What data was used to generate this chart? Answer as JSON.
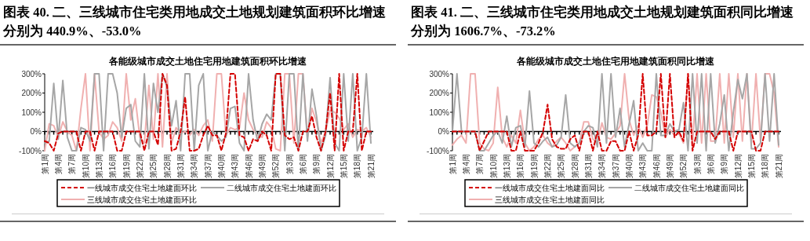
{
  "chart_data": [
    {
      "type": "line",
      "title": "图表 40. 二、三线城市住宅类用地成交土地规划建筑面积环比增速分别为 440.9%、-53.0%",
      "subtitle": "各能级城市成交土地住宅用地建筑面积环比增速",
      "categories": [
        "第1周",
        null,
        null,
        "第4周",
        null,
        null,
        "第7周",
        null,
        null,
        "第10周",
        null,
        null,
        "第13周",
        null,
        null,
        "第16周",
        null,
        null,
        "第19周",
        null,
        null,
        "第22周",
        null,
        null,
        "第25周",
        null,
        null,
        "第28周",
        null,
        null,
        "第31周",
        null,
        null,
        "第34周",
        null,
        null,
        "第37周",
        null,
        null,
        "第40周",
        null,
        null,
        "第43周",
        null,
        null,
        "第46周",
        null,
        null,
        "第49周",
        null,
        null,
        "第52周",
        null,
        null,
        "第3周",
        null,
        null,
        "第6周",
        null,
        null,
        "第9周",
        null,
        null,
        "第12周",
        null,
        null,
        "第15周",
        null,
        null,
        "第18周",
        null,
        null,
        "第21周"
      ],
      "ylim": [
        -100,
        300
      ],
      "yticks": [
        {
          "value": -100,
          "label": "-100%"
        },
        {
          "value": 0,
          "label": "0%"
        },
        {
          "value": 100,
          "label": "100%"
        },
        {
          "value": 200,
          "label": "200%"
        },
        {
          "value": 300,
          "label": "300%"
        }
      ],
      "legend": "bottom",
      "marker": "none",
      "series": [
        {
          "name": "一线城市成交住宅土地建面环比",
          "color": "#d40000",
          "line_style": "dashed",
          "values": [
            -50,
            -60,
            -100,
            -10,
            0,
            0,
            0,
            0,
            -100,
            0,
            0,
            -100,
            0,
            0,
            0,
            0,
            -100,
            -100,
            0,
            0,
            0,
            0,
            -100,
            0,
            0,
            -70,
            300,
            240,
            -100,
            -90,
            0,
            180,
            -100,
            -100,
            -90,
            -20,
            30,
            -20,
            -20,
            -100,
            -10,
            300,
            300,
            -20,
            -30,
            -100,
            -40,
            -50,
            0,
            -20,
            -100,
            300,
            300,
            -20,
            -40,
            -30,
            -100,
            0,
            0,
            80,
            -30,
            -100,
            0,
            200,
            -100,
            300,
            -100,
            0,
            0,
            300,
            -100,
            0,
            0
          ]
        },
        {
          "name": "二线城市成交住宅土地建面环比",
          "color": "#a6a6a6",
          "line_style": "solid",
          "values": [
            -60,
            -50,
            250,
            -40,
            265,
            -30,
            -100,
            -100,
            20,
            10,
            -50,
            300,
            300,
            -100,
            300,
            300,
            200,
            -30,
            120,
            140,
            -50,
            -80,
            300,
            -90,
            250,
            100,
            300,
            230,
            30,
            160,
            -100,
            300,
            300,
            -100,
            240,
            300,
            -100,
            0,
            -20,
            -50,
            -30,
            120,
            130,
            -60,
            -100,
            300,
            60,
            -50,
            40,
            90,
            60,
            300,
            300,
            -100,
            300,
            300,
            -100,
            300,
            -50,
            220,
            80,
            -100,
            -20,
            280,
            -60,
            -100,
            300,
            -50,
            300,
            -100,
            -30,
            300,
            -60
          ]
        },
        {
          "name": "三线城市成交住宅土地建面环比",
          "color": "#f0b0b0",
          "line_style": "solid",
          "values": [
            -100,
            40,
            30,
            -30,
            50,
            0,
            -20,
            -100,
            120,
            300,
            -100,
            300,
            0,
            -40,
            -20,
            50,
            20,
            -50,
            300,
            60,
            170,
            -30,
            -60,
            240,
            -40,
            300,
            -80,
            300,
            -60,
            20,
            -10,
            0,
            -20,
            10,
            -20,
            30,
            60,
            -50,
            300,
            300,
            -20,
            20,
            10,
            20,
            200,
            60,
            10,
            -20,
            -30,
            50,
            20,
            -90,
            -100,
            300,
            300,
            -60,
            300,
            300,
            -30,
            120,
            50,
            -60,
            0,
            110,
            100,
            70,
            10,
            40,
            -30,
            10,
            0,
            20,
            -30
          ]
        }
      ]
    },
    {
      "type": "line",
      "title": "图表 41. 二、三线城市住宅类用地成交土地规划建筑面积同比增速分别为 1606.7%、-73.2%",
      "subtitle": "各能级城市成交土地住宅用地建筑面积同比增速",
      "categories": [
        "第1周",
        null,
        null,
        "第4周",
        null,
        null,
        "第7周",
        null,
        null,
        "第10周",
        null,
        null,
        "第13周",
        null,
        null,
        "第16周",
        null,
        null,
        "第19周",
        null,
        null,
        "第22周",
        null,
        null,
        "第25周",
        null,
        null,
        "第28周",
        null,
        null,
        "第31周",
        null,
        null,
        "第34周",
        null,
        null,
        "第37周",
        null,
        null,
        "第40周",
        null,
        null,
        "第43周",
        null,
        null,
        "第46周",
        null,
        null,
        "第49周",
        null,
        null,
        "第52周",
        null,
        null,
        "第3周",
        null,
        null,
        "第6周",
        null,
        null,
        "第9周",
        null,
        null,
        "第12周",
        null,
        null,
        "第15周",
        null,
        null,
        "第18周",
        null,
        null,
        "第21周"
      ],
      "ylim": [
        -100,
        300
      ],
      "yticks": [
        {
          "value": -100,
          "label": "-100%"
        },
        {
          "value": 0,
          "label": "0%"
        },
        {
          "value": 100,
          "label": "100%"
        },
        {
          "value": 200,
          "label": "200%"
        },
        {
          "value": 300,
          "label": "300%"
        }
      ],
      "legend": "bottom",
      "marker": "none",
      "series": [
        {
          "name": "一线城市成交住宅土地建面同比",
          "color": "#d40000",
          "line_style": "dashed",
          "values": [
            0,
            0,
            0,
            0,
            0,
            0,
            -100,
            -50,
            0,
            0,
            0,
            0,
            0,
            -100,
            -100,
            0,
            -100,
            -100,
            -100,
            -60,
            0,
            140,
            -40,
            -80,
            -90,
            -90,
            -40,
            -20,
            -100,
            0,
            0,
            -100,
            0,
            -100,
            -100,
            -50,
            -50,
            -100,
            -100,
            0,
            -100,
            -20,
            300,
            -20,
            -20,
            0,
            300,
            -30,
            300,
            -30,
            0,
            -50,
            300,
            -100,
            0,
            0,
            0,
            0,
            -40,
            0,
            0,
            0,
            -100,
            0,
            0,
            0,
            0,
            -100,
            -100,
            0,
            0,
            0,
            0
          ]
        },
        {
          "name": "二线城市成交住宅土地建面同比",
          "color": "#a6a6a6",
          "line_style": "solid",
          "values": [
            0,
            300,
            0,
            0,
            0,
            0,
            -100,
            -100,
            -60,
            -20,
            0,
            -60,
            80,
            -80,
            20,
            30,
            -80,
            210,
            -60,
            -80,
            -50,
            -30,
            -80,
            -70,
            -30,
            190,
            -60,
            -80,
            -60,
            0,
            30,
            20,
            -80,
            300,
            -60,
            300,
            -30,
            120,
            -80,
            40,
            160,
            -100,
            -60,
            -100,
            -100,
            300,
            -20,
            -20,
            40,
            0,
            10,
            150,
            -100,
            300,
            -60,
            300,
            -100,
            300,
            -60,
            40,
            190,
            -100,
            100,
            270,
            170,
            300,
            -90,
            -90,
            -60,
            300,
            -50,
            300,
            -70
          ]
        },
        {
          "name": "三线城市成交住宅土地建面同比",
          "color": "#f0b0b0",
          "line_style": "solid",
          "values": [
            -70,
            -40,
            -20,
            -60,
            300,
            300,
            -60,
            -90,
            -100,
            -60,
            230,
            -30,
            -80,
            -20,
            -60,
            110,
            -60,
            -100,
            -80,
            -40,
            -20,
            -60,
            -80,
            -50,
            -30,
            -60,
            -100,
            -80,
            -60,
            50,
            50,
            -40,
            -60,
            45,
            -30,
            -40,
            -10,
            30,
            300,
            60,
            -20,
            30,
            -30,
            30,
            190,
            180,
            100,
            -30,
            10,
            -20,
            -10,
            -60,
            300,
            -60,
            300,
            -60,
            300,
            -50,
            -50,
            300,
            -60,
            300,
            -30,
            300,
            -50,
            300,
            -60,
            300,
            -50,
            300,
            300,
            200,
            -80
          ]
        }
      ]
    }
  ]
}
